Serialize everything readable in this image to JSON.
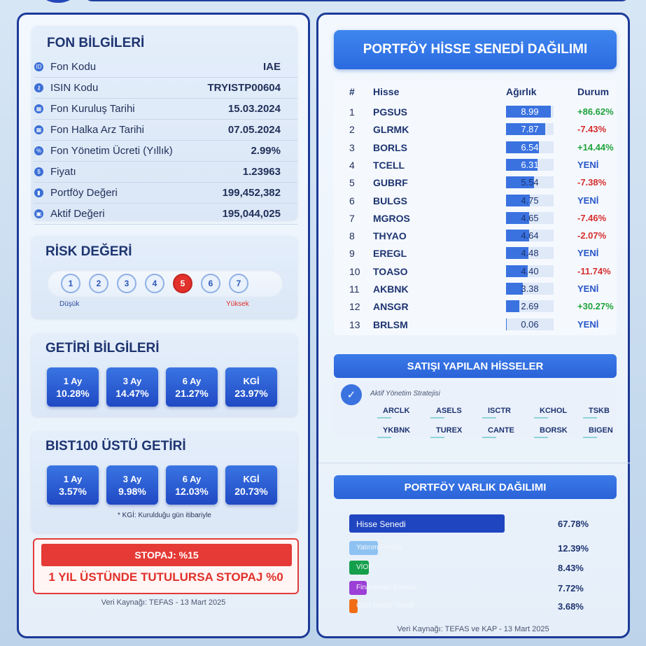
{
  "fund_info": {
    "title": "FON BİLGİLERİ",
    "rows": [
      {
        "label": "Fon Kodu",
        "value": "IAE",
        "icon": "id-icon",
        "icon_glyph": "ID"
      },
      {
        "label": "ISIN Kodu",
        "value": "TRYISTP00604",
        "icon": "key-icon",
        "icon_glyph": "⚷"
      },
      {
        "label": "Fon Kuruluş Tarihi",
        "value": "15.03.2024",
        "icon": "calendar-icon",
        "icon_glyph": "▦"
      },
      {
        "label": "Fon Halka Arz Tarihi",
        "value": "07.05.2024",
        "icon": "calendar-icon",
        "icon_glyph": "▦"
      },
      {
        "label": "Fon Yönetim Ücreti (Yıllık)",
        "value": "2.99%",
        "icon": "percent-icon",
        "icon_glyph": "%"
      },
      {
        "label": "Fiyatı",
        "value": "1.23963",
        "icon": "price-icon",
        "icon_glyph": "$"
      },
      {
        "label": "Portföy Değeri",
        "value": "199,452,382",
        "icon": "chart-icon",
        "icon_glyph": "▮"
      },
      {
        "label": "Aktif Değeri",
        "value": "195,044,025",
        "icon": "wallet-icon",
        "icon_glyph": "▣"
      }
    ]
  },
  "risk": {
    "title": "RİSK DEĞERİ",
    "levels": [
      "1",
      "2",
      "3",
      "4",
      "5",
      "6",
      "7"
    ],
    "active_level": 5,
    "low_label": "Düşük",
    "high_label": "Yüksek"
  },
  "returns": {
    "title": "GETİRİ BİLGİLERİ",
    "items": [
      {
        "period": "1 Ay",
        "value": "10.28%"
      },
      {
        "period": "3 Ay",
        "value": "14.47%"
      },
      {
        "period": "6 Ay",
        "value": "21.27%"
      },
      {
        "period": "KGİ",
        "value": "23.97%"
      }
    ]
  },
  "bist": {
    "title": "BIST100 ÜSTÜ GETİRİ",
    "items": [
      {
        "period": "1 Ay",
        "value": "3.57%"
      },
      {
        "period": "3 Ay",
        "value": "9.98%"
      },
      {
        "period": "6 Ay",
        "value": "12.03%"
      },
      {
        "period": "KGİ",
        "value": "20.73%"
      }
    ],
    "footnote": "* KGİ: Kurulduğu gün itibariyle"
  },
  "stopaj": {
    "label": "STOPAJ: %15",
    "note": "1 YIL ÜSTÜNDE TUTULURSA STOPAJ %0"
  },
  "left_source": "Veri Kaynağı: TEFAS - 13 Mart 2025",
  "portfolio": {
    "title": "PORTFÖY HİSSE SENEDİ DAĞILIMI",
    "headers": {
      "num": "#",
      "stock": "Hisse",
      "weight": "Ağırlık",
      "status": "Durum"
    },
    "max_weight": 9.5,
    "rows": [
      {
        "n": "1",
        "ticker": "PGSUS",
        "weight": 8.99,
        "weight_label": "8.99",
        "status": "+86.62%",
        "kind": "pos"
      },
      {
        "n": "2",
        "ticker": "GLRMK",
        "weight": 7.87,
        "weight_label": "7.87",
        "status": "-7.43%",
        "kind": "neg"
      },
      {
        "n": "3",
        "ticker": "BORLS",
        "weight": 6.54,
        "weight_label": "6.54",
        "status": "+14.44%",
        "kind": "pos"
      },
      {
        "n": "4",
        "ticker": "TCELL",
        "weight": 6.31,
        "weight_label": "6.31",
        "status": "YENİ",
        "kind": "new"
      },
      {
        "n": "5",
        "ticker": "GUBRF",
        "weight": 5.54,
        "weight_label": "5.54",
        "status": "-7.38%",
        "kind": "neg"
      },
      {
        "n": "6",
        "ticker": "BULGS",
        "weight": 4.75,
        "weight_label": "4.75",
        "status": "YENİ",
        "kind": "new"
      },
      {
        "n": "7",
        "ticker": "MGROS",
        "weight": 4.65,
        "weight_label": "4.65",
        "status": "-7.46%",
        "kind": "neg"
      },
      {
        "n": "8",
        "ticker": "THYAO",
        "weight": 4.64,
        "weight_label": "4.64",
        "status": "-2.07%",
        "kind": "neg"
      },
      {
        "n": "9",
        "ticker": "EREGL",
        "weight": 4.48,
        "weight_label": "4.48",
        "status": "YENİ",
        "kind": "new"
      },
      {
        "n": "10",
        "ticker": "TOASO",
        "weight": 4.4,
        "weight_label": "4.40",
        "status": "-11.74%",
        "kind": "neg"
      },
      {
        "n": "11",
        "ticker": "AKBNK",
        "weight": 3.38,
        "weight_label": "3.38",
        "status": "YENİ",
        "kind": "new"
      },
      {
        "n": "12",
        "ticker": "ANSGR",
        "weight": 2.69,
        "weight_label": "2.69",
        "status": "+30.27%",
        "kind": "pos"
      },
      {
        "n": "13",
        "ticker": "BRLSM",
        "weight": 0.06,
        "weight_label": "0.06",
        "status": "YENİ",
        "kind": "new"
      }
    ]
  },
  "sold": {
    "title": "SATIŞI YAPILAN HİSSELER",
    "strategy": "Aktif Yönetim Stratejisi",
    "tickers": [
      "ARCLK",
      "ASELS",
      "ISCTR",
      "KCHOL",
      "TSKB",
      "YKBNK",
      "TUREX",
      "CANTE",
      "BORSK",
      "BIGEN"
    ]
  },
  "assets": {
    "title": "PORTFÖY VARLIK DAĞILIMI",
    "items": [
      {
        "label": "Hisse Senedi",
        "value": "67.78%",
        "pct": 67.78,
        "color": "#1f45c0"
      },
      {
        "label": "Yatırım Fonları",
        "value": "12.39%",
        "pct": 12.39,
        "color": "#8ec2f2"
      },
      {
        "label": "VİOP",
        "value": "8.43%",
        "pct": 8.43,
        "color": "#14a04a"
      },
      {
        "label": "Finansman Bonosu",
        "value": "7.72%",
        "pct": 7.72,
        "color": "#9b3fd6"
      },
      {
        "label": "Özel Sektör Tahvili",
        "value": "3.68%",
        "pct": 3.68,
        "color": "#f06d16"
      }
    ]
  },
  "right_source": "Veri Kaynağı: TEFAS ve KAP - 13 Mart 2025"
}
